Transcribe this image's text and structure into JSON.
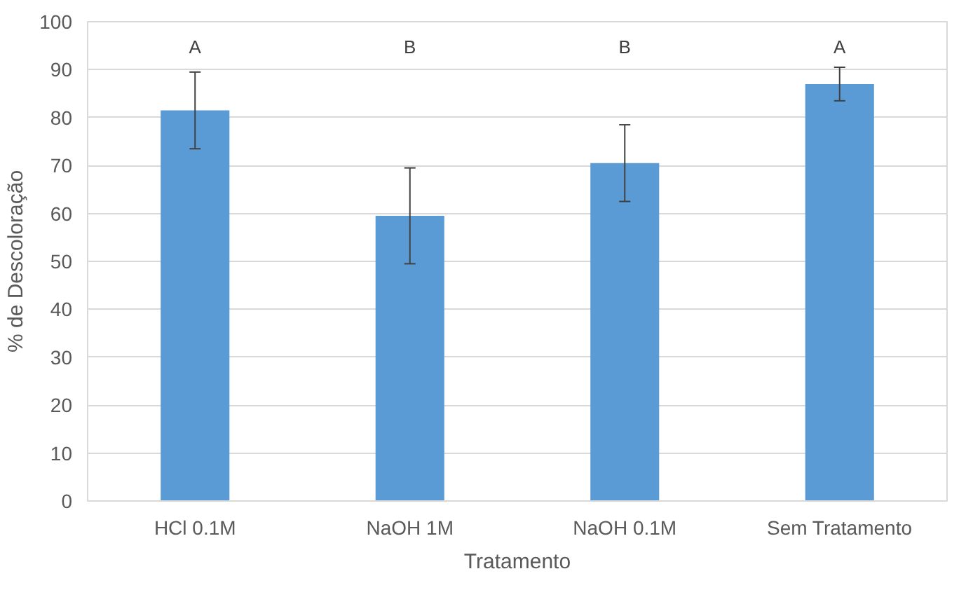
{
  "chart_data": {
    "type": "bar",
    "xlabel": "Tratamento",
    "ylabel": "% de Descoloração",
    "categories": [
      "HCl 0.1M",
      "NaOH 1M",
      "NaOH 0.1M",
      "Sem Tratamento"
    ],
    "values": [
      81.5,
      59.5,
      70.5,
      87
    ],
    "errors": [
      8,
      10,
      8,
      3.5
    ],
    "color": "#5b9bd5",
    "ylim": [
      0,
      100
    ],
    "yticks": [
      0,
      10,
      20,
      30,
      40,
      50,
      60,
      70,
      80,
      90,
      100
    ],
    "grid": "y",
    "annotations": [
      "A",
      "B",
      "B",
      "A"
    ]
  }
}
